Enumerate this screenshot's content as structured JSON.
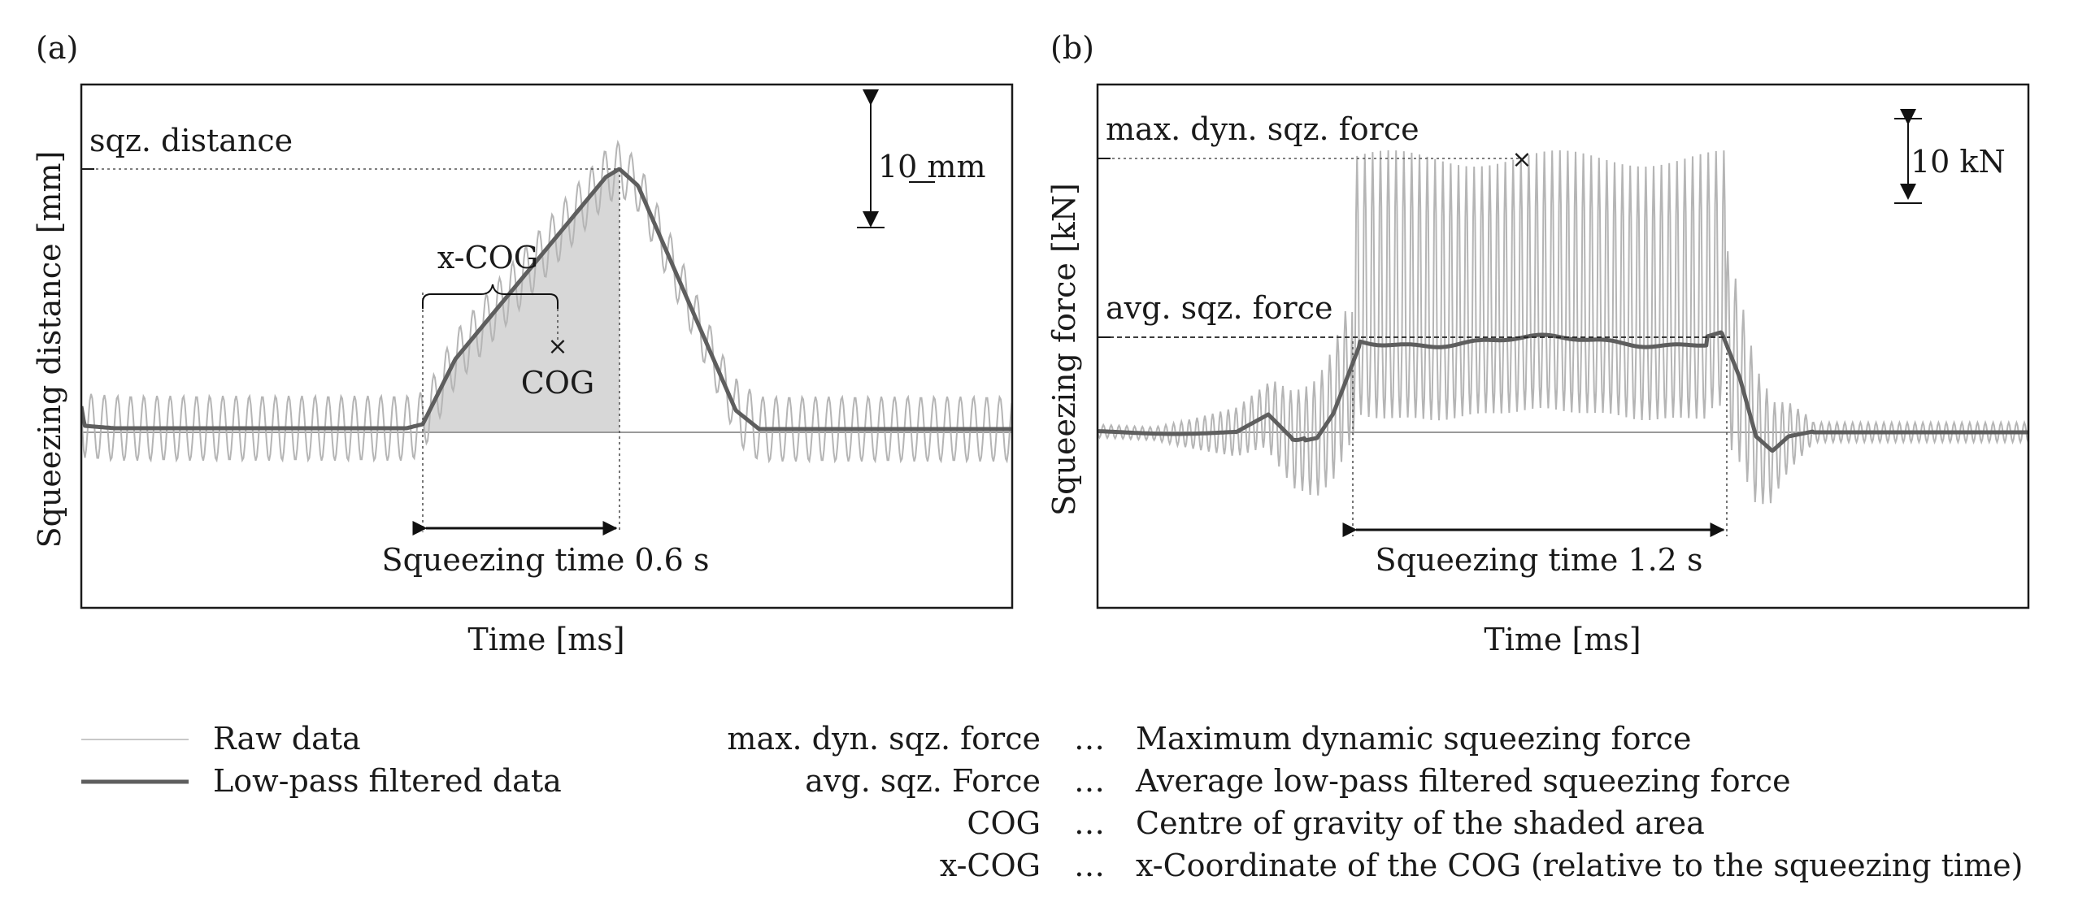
{
  "chart_data": [
    {
      "type": "line",
      "panel_label": "(a)",
      "xlabel": "Time [ms]",
      "ylabel": "Squeezing distance [mm]",
      "grid": false,
      "series": [
        {
          "name": "Raw data",
          "description": "oscillating raw squeezing distance"
        },
        {
          "name": "Low-pass filtered data",
          "description": "smoothed squeezing distance"
        }
      ],
      "annotations": {
        "peak_label": "sqz. distance",
        "scale_bar": "10 mm",
        "xcog_label": "x-COG",
        "cog_label": "COG",
        "cog_marker": "×",
        "time_label": "Squeezing time 0.6 s"
      }
    },
    {
      "type": "line",
      "panel_label": "(b)",
      "xlabel": "Time [ms]",
      "ylabel": "Squeezing force [kN]",
      "grid": false,
      "series": [
        {
          "name": "Raw data",
          "description": "oscillating raw squeezing force"
        },
        {
          "name": "Low-pass filtered data",
          "description": "smoothed squeezing force"
        }
      ],
      "annotations": {
        "max_label": "max. dyn. sqz. force",
        "max_marker": "×",
        "avg_label": "avg. sqz. force",
        "scale_bar": "10 kN",
        "time_label": "Squeezing time 1.2 s"
      }
    }
  ],
  "legend": {
    "raw": "Raw data",
    "filtered": "Low-pass filtered data"
  },
  "definitions": [
    {
      "term": "max. dyn. sqz. force",
      "sep": "…",
      "desc": "Maximum dynamic squeezing force"
    },
    {
      "term": "avg. sqz. Force",
      "sep": "…",
      "desc": "Average low-pass filtered squeezing force"
    },
    {
      "term": "COG",
      "sep": "…",
      "desc": "Centre of gravity of the shaded area"
    },
    {
      "term": "x-COG",
      "sep": "…",
      "desc": "x-Coordinate of the COG (relative to the squeezing time)"
    }
  ],
  "colors": {
    "raw": "#b5b5b5",
    "filtered": "#5e5e5e",
    "shade": "#d7d7d7",
    "frame": "#1a1a1a"
  }
}
